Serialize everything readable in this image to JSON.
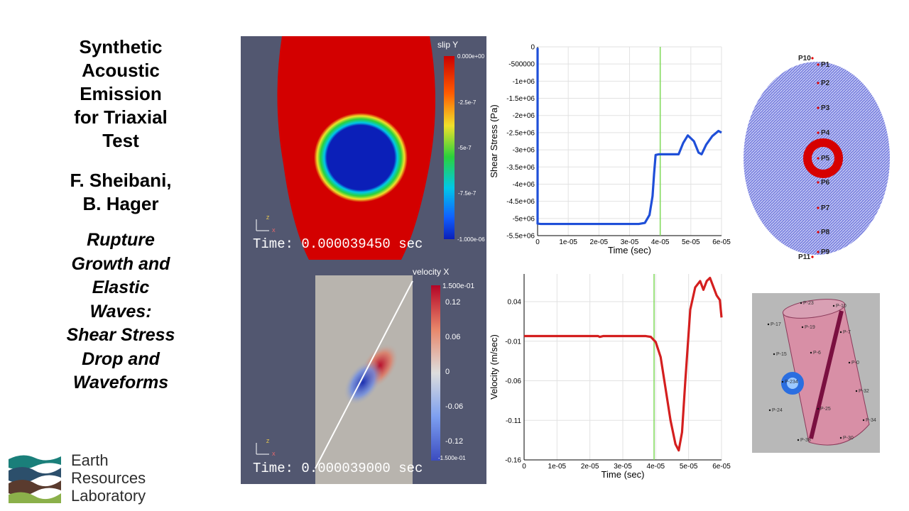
{
  "slide": {
    "title_lines": [
      "Synthetic",
      "Acoustic",
      "Emission",
      "for Triaxial",
      "Test"
    ],
    "authors_lines": [
      "F. Sheibani,",
      "B. Hager"
    ],
    "subtitle_lines": [
      "Rupture",
      "Growth and",
      "Elastic",
      "Waves:",
      "Shear Stress",
      "Drop and",
      "Waveforms"
    ]
  },
  "logo": {
    "lines": [
      "Earth",
      "Resources",
      "Laboratory"
    ],
    "colors": [
      "#1a7f7a",
      "#2c4f6b",
      "#5a3b2e",
      "#8bb04a"
    ]
  },
  "slip_panel": {
    "time_text": "Time: 0.000039450 sec",
    "colorbar": {
      "title": "slip Y",
      "ticks": [
        "0.000e+00",
        "-2.5e-7",
        "-5e-7",
        "-7.5e-7",
        "-1.000e-06"
      ]
    }
  },
  "velocity_panel": {
    "time_text": "Time: 0.000039000 sec",
    "colorbar": {
      "title": "velocity X",
      "ticks": [
        "1.500e-01",
        "0.12",
        "0.06",
        "0",
        "-0.06",
        "-0.12",
        "-1.500e-01"
      ]
    }
  },
  "chart_data": [
    {
      "type": "line",
      "title": "",
      "xlabel": "Time (sec)",
      "ylabel": "Shear Stress (Pa)",
      "xlim": [
        0,
        6e-05
      ],
      "ylim": [
        -5500000.0,
        0
      ],
      "x_ticks": [
        "0",
        "1e-05",
        "2e-05",
        "3e-05",
        "4e-05",
        "5e-05",
        "6e-05"
      ],
      "y_ticks": [
        "0",
        "-500000",
        "-1e+06",
        "-1.5e+06",
        "-2e+06",
        "-2.5e+06",
        "-3e+06",
        "-3.5e+06",
        "-4e+06",
        "-4.5e+06",
        "-5e+06",
        "-5.5e+06"
      ],
      "grid": true,
      "marker_time": 4e-05,
      "series": [
        {
          "color": "#1f4fd8",
          "x": [
            0,
            0,
            1e-06,
            1e-05,
            2e-05,
            3e-05,
            3.3e-05,
            3.5e-05,
            3.65e-05,
            3.75e-05,
            3.8e-05,
            3.85e-05,
            3.95e-05,
            4.6e-05,
            4.75e-05,
            4.9e-05,
            5.1e-05,
            5.25e-05,
            5.35e-05,
            5.5e-05,
            5.7e-05,
            5.9e-05,
            6e-05
          ],
          "y": [
            -30000.0,
            -5150000.0,
            -5160000.0,
            -5160000.0,
            -5160000.0,
            -5160000.0,
            -5160000.0,
            -5130000.0,
            -4900000.0,
            -4350000.0,
            -3700000.0,
            -3150000.0,
            -3130000.0,
            -3130000.0,
            -2800000.0,
            -2580000.0,
            -2750000.0,
            -3080000.0,
            -3130000.0,
            -2850000.0,
            -2600000.0,
            -2450000.0,
            -2500000.0
          ]
        }
      ]
    },
    {
      "type": "line",
      "title": "",
      "xlabel": "Time (sec)",
      "ylabel": "Velocity (m/sec)",
      "xlim": [
        0,
        6e-05
      ],
      "ylim": [
        -0.16,
        0.075
      ],
      "x_ticks": [
        "0",
        "1e-05",
        "2e-05",
        "3e-05",
        "4e-05",
        "5e-05",
        "6e-05"
      ],
      "y_ticks": [
        "0.04",
        "-0.01",
        "-0.06",
        "-0.11",
        "-0.16"
      ],
      "grid": true,
      "marker_time": 3.95e-05,
      "series": [
        {
          "color": "#d41f1f",
          "x": [
            0,
            1e-05,
            2e-05,
            2.25e-05,
            2.3e-05,
            2.4e-05,
            3.7e-05,
            3.85e-05,
            4e-05,
            4.15e-05,
            4.3e-05,
            4.45e-05,
            4.6e-05,
            4.7e-05,
            4.8e-05,
            4.9e-05,
            5e-05,
            5.05e-05,
            5.2e-05,
            5.35e-05,
            5.45e-05,
            5.55e-05,
            5.65e-05,
            5.75e-05,
            5.85e-05,
            5.95e-05,
            6e-05
          ],
          "y": [
            -0.0035,
            -0.0035,
            -0.0035,
            -0.0035,
            -0.0045,
            -0.0035,
            -0.0035,
            -0.0045,
            -0.011,
            -0.03,
            -0.07,
            -0.11,
            -0.14,
            -0.148,
            -0.125,
            -0.06,
            0.0,
            0.03,
            0.058,
            0.066,
            0.055,
            0.066,
            0.07,
            0.059,
            0.048,
            0.042,
            0.02
          ]
        }
      ]
    }
  ],
  "points_panel": {
    "labels": [
      "P10",
      "P1",
      "P2",
      "P3",
      "P4",
      "P5",
      "P6",
      "P7",
      "P8",
      "P9",
      "P11"
    ]
  },
  "cylinder_panel": {
    "labels": [
      "P-23",
      "P-10",
      "P-17",
      "P-19",
      "P-7",
      "P-15",
      "P-6",
      "P-0",
      "P-234",
      "P-32",
      "P-24",
      "P-25",
      "P-34",
      "P-38",
      "P-30"
    ]
  }
}
